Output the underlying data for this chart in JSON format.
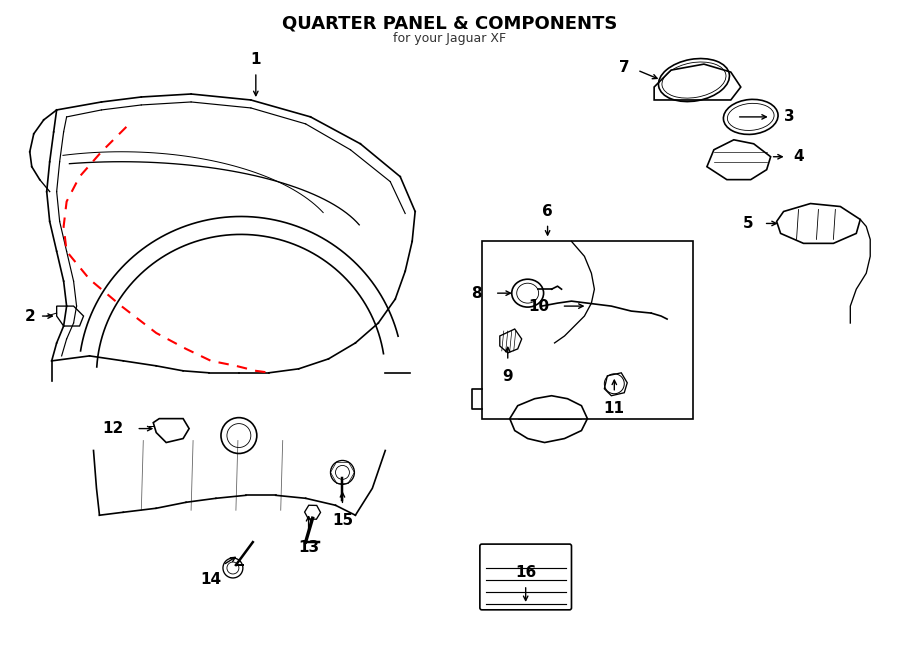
{
  "title": "QUARTER PANEL & COMPONENTS",
  "subtitle": "for your Jaguar XF",
  "bg_color": "#ffffff",
  "line_color": "#000000",
  "red_dash_color": "#ff0000",
  "label_color": "#000000",
  "figsize": [
    9.0,
    6.61
  ],
  "dpi": 100
}
